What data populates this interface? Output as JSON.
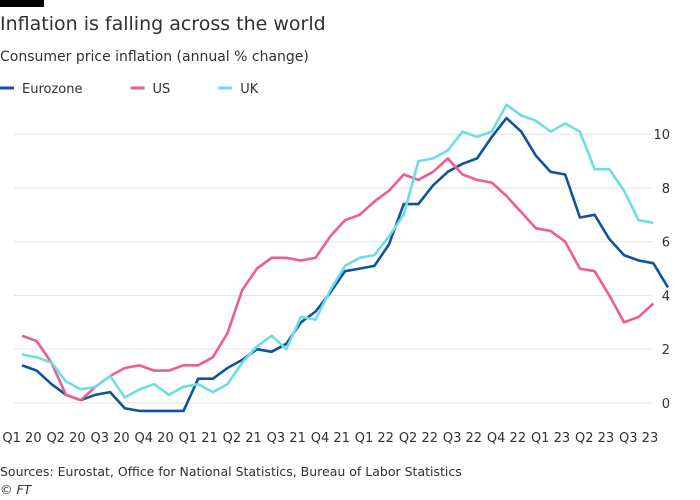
{
  "chart_data": {
    "type": "line",
    "title": "Inflation is falling across the world",
    "subtitle": "Consumer price inflation (annual % change)",
    "source": "Sources: Eurostat, Office for National Statistics, Bureau of Labor Statistics",
    "credit": "© FT",
    "categories": [
      "Q1 20",
      null,
      null,
      "Q2 20",
      null,
      null,
      "Q3 20",
      null,
      null,
      "Q4 20",
      null,
      null,
      "Q1 21",
      null,
      null,
      "Q2 21",
      null,
      null,
      "Q3 21",
      null,
      null,
      "Q4 21",
      null,
      null,
      "Q1 22",
      null,
      null,
      "Q2 22",
      null,
      null,
      "Q3 22",
      null,
      null,
      "Q4 22",
      null,
      null,
      "Q1 23",
      null,
      null,
      "Q2 23",
      null,
      null,
      "Q3 23",
      null,
      null
    ],
    "series": [
      {
        "name": "Eurozone",
        "color": "#0f5499",
        "values": [
          1.4,
          1.2,
          0.7,
          0.3,
          0.1,
          0.3,
          0.4,
          -0.2,
          -0.3,
          -0.3,
          -0.3,
          -0.3,
          0.9,
          0.9,
          1.3,
          1.6,
          2.0,
          1.9,
          2.2,
          3.0,
          3.4,
          4.1,
          4.9,
          5.0,
          5.1,
          5.9,
          7.4,
          7.4,
          8.1,
          8.6,
          8.9,
          9.1,
          9.9,
          10.6,
          10.1,
          9.2,
          8.6,
          8.5,
          6.9,
          7.0,
          6.1,
          5.5,
          5.3,
          5.2,
          4.3
        ]
      },
      {
        "name": "US",
        "color": "#eb5e8d",
        "values": [
          2.5,
          2.3,
          1.5,
          0.3,
          0.1,
          0.6,
          1.0,
          1.3,
          1.4,
          1.2,
          1.2,
          1.4,
          1.4,
          1.7,
          2.6,
          4.2,
          5.0,
          5.4,
          5.4,
          5.3,
          5.4,
          6.2,
          6.8,
          7.0,
          7.5,
          7.9,
          8.5,
          8.3,
          8.6,
          9.1,
          8.5,
          8.3,
          8.2,
          7.7,
          7.1,
          6.5,
          6.4,
          6.0,
          5.0,
          4.9,
          4.0,
          3.0,
          3.2,
          3.7,
          null
        ]
      },
      {
        "name": "UK",
        "color": "#70dce6",
        "values": [
          1.8,
          1.7,
          1.5,
          0.8,
          0.5,
          0.6,
          1.0,
          0.2,
          0.5,
          0.7,
          0.3,
          0.6,
          0.7,
          0.4,
          0.7,
          1.5,
          2.1,
          2.5,
          2.0,
          3.2,
          3.1,
          4.2,
          5.1,
          5.4,
          5.5,
          6.2,
          7.0,
          9.0,
          9.1,
          9.4,
          10.1,
          9.9,
          10.1,
          11.1,
          10.7,
          10.5,
          10.1,
          10.4,
          10.1,
          8.7,
          8.7,
          7.9,
          6.8,
          6.7,
          null
        ]
      }
    ],
    "ylim": [
      -0.6,
      11.2
    ],
    "yticks": [
      0,
      2,
      4,
      6,
      8,
      10
    ],
    "grid": true
  }
}
